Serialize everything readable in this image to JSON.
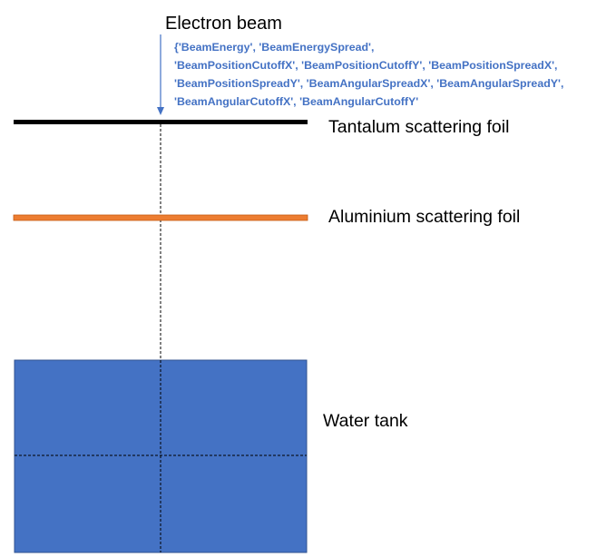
{
  "beam": {
    "title": "Electron beam",
    "parameters": [
      "{'BeamEnergy', 'BeamEnergySpread',",
      "'BeamPositionCutoffX',  'BeamPositionCutoffY', 'BeamPositionSpreadX',",
      "'BeamPositionSpreadY', 'BeamAngularSpreadX',  'BeamAngularSpreadY',",
      "'BeamAngularCutoffX', 'BeamAngularCutoffY'"
    ]
  },
  "components": {
    "tantalum_foil": "Tantalum scattering foil",
    "aluminium_foil": "Aluminium scattering foil",
    "water_tank": "Water tank"
  },
  "colors": {
    "parameter_text": "#4472c4",
    "arrow": "#4472c4",
    "tantalum_foil": "#000000",
    "aluminium_foil": "#ed7d31",
    "aluminium_foil_border": "#c55a11",
    "water_tank_fill": "#4472c4",
    "water_tank_border": "#2f528f",
    "beam_axis": "#000000"
  },
  "icons": {
    "beam_arrow": "down-arrow-icon"
  }
}
